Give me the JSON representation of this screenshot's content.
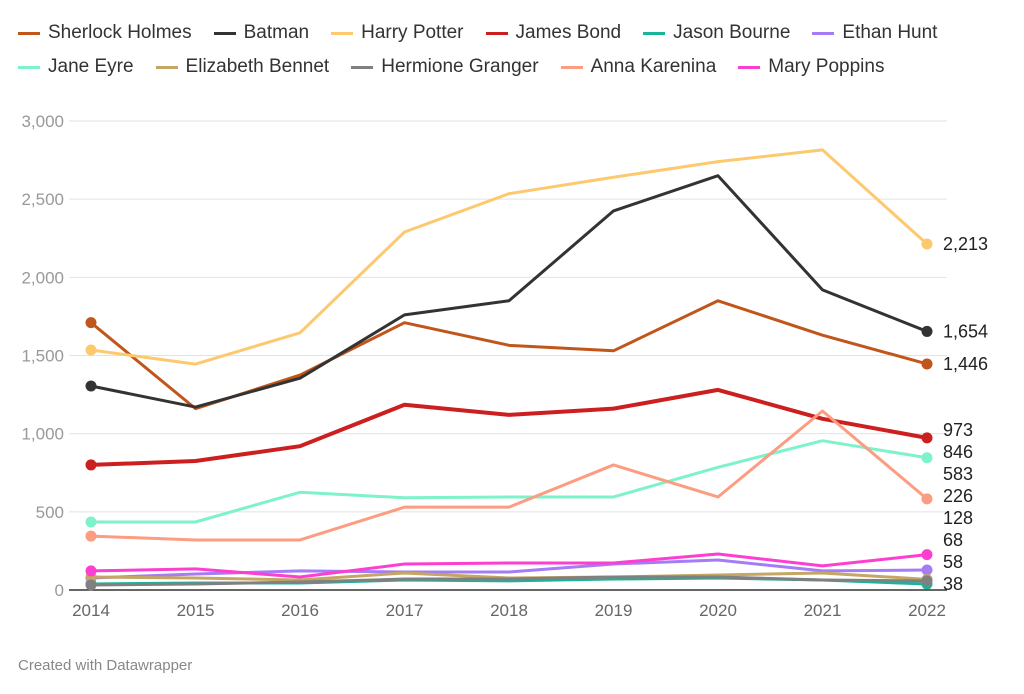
{
  "chart_data": {
    "type": "line",
    "title": "",
    "xlabel": "",
    "ylabel": "",
    "x": [
      2014,
      2015,
      2016,
      2017,
      2018,
      2019,
      2020,
      2021,
      2022
    ],
    "ylim": [
      0,
      3000
    ],
    "yticks": [
      0,
      500,
      1000,
      1500,
      2000,
      2500,
      3000
    ],
    "ytick_labels": [
      "0",
      "500",
      "1,000",
      "1,500",
      "2,000",
      "2,500",
      "3,000"
    ],
    "grid": true,
    "legend": "top",
    "series": [
      {
        "name": "Sherlock Holmes",
        "color": "#c0561a",
        "values": [
          1710,
          1160,
          1375,
          1710,
          1565,
          1530,
          1850,
          1630,
          1446
        ],
        "end_label": "1,446"
      },
      {
        "name": "Batman",
        "color": "#333333",
        "values": [
          1305,
          1170,
          1355,
          1760,
          1850,
          2425,
          2650,
          1920,
          1654
        ],
        "end_label": "1,654"
      },
      {
        "name": "Harry Potter",
        "color": "#fcc96e",
        "values": [
          1535,
          1445,
          1645,
          2290,
          2535,
          2640,
          2740,
          2815,
          2213
        ],
        "end_label": "2,213"
      },
      {
        "name": "James Bond",
        "color": "#cc1f1f",
        "values": [
          800,
          825,
          920,
          1185,
          1120,
          1160,
          1280,
          1095,
          973
        ],
        "end_label": "973"
      },
      {
        "name": "Jason Bourne",
        "color": "#1db39a",
        "values": [
          38,
          45,
          45,
          64,
          58,
          70,
          77,
          64,
          38
        ],
        "end_label": "38"
      },
      {
        "name": "Ethan Hunt",
        "color": "#a57cf5",
        "values": [
          77,
          102,
          122,
          115,
          115,
          166,
          192,
          122,
          128
        ],
        "end_label": "128"
      },
      {
        "name": "Jane Eyre",
        "color": "#7ef2c9",
        "values": [
          435,
          435,
          625,
          590,
          595,
          595,
          785,
          955,
          846
        ],
        "end_label": "846"
      },
      {
        "name": "Elizabeth Bennet",
        "color": "#c4a665",
        "values": [
          83,
          77,
          64,
          109,
          77,
          83,
          96,
          109,
          68
        ],
        "end_label": "68"
      },
      {
        "name": "Hermione Granger",
        "color": "#808080",
        "values": [
          32,
          38,
          51,
          70,
          70,
          83,
          83,
          64,
          58
        ],
        "end_label": "58"
      },
      {
        "name": "Anna Karenina",
        "color": "#fc9c80",
        "values": [
          345,
          320,
          320,
          530,
          530,
          800,
          595,
          1145,
          583
        ],
        "end_label": "583"
      },
      {
        "name": "Mary Poppins",
        "color": "#fc3fd0",
        "values": [
          122,
          135,
          83,
          166,
          173,
          173,
          230,
          154,
          226
        ],
        "end_label": "226"
      }
    ]
  },
  "footer": "Created with Datawrapper"
}
